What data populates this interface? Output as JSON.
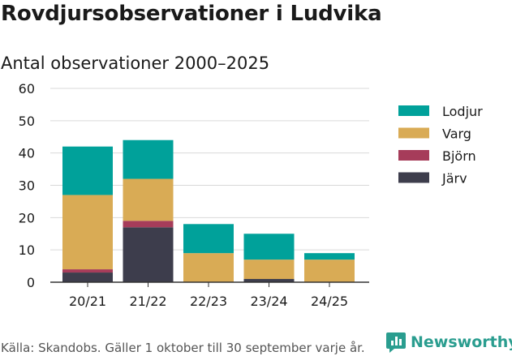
{
  "title": "Rovdjursobservationer i Ludvika",
  "subtitle": "Antal observationer 2000–2025",
  "footer": "Källa: Skandobs. Gäller 1 oktober till 30 september varje år.",
  "brand": {
    "name": "Newsworthy",
    "icon": "bar-chart-logo-icon"
  },
  "colors": {
    "Lodjur": "#00a19a",
    "Varg": "#d9ab55",
    "Björn": "#a63c5a",
    "Järv": "#3d3d4c",
    "grid": "#d9d9d9",
    "axis": "#333333",
    "brand": "#2a9d8f"
  },
  "chart_data": {
    "type": "bar",
    "stacked": true,
    "title": "Rovdjursobservationer i Ludvika",
    "subtitle": "Antal observationer 2000–2025",
    "xlabel": "",
    "ylabel": "",
    "categories": [
      "20/21",
      "21/22",
      "22/23",
      "23/24",
      "24/25"
    ],
    "yticks": [
      0,
      10,
      20,
      30,
      40,
      50,
      60
    ],
    "ylim": [
      0,
      60
    ],
    "grid": true,
    "legend_position": "right",
    "legend_order": [
      "Lodjur",
      "Varg",
      "Björn",
      "Järv"
    ],
    "series": [
      {
        "name": "Järv",
        "values": [
          3,
          17,
          0,
          1,
          0
        ]
      },
      {
        "name": "Björn",
        "values": [
          1,
          2,
          0,
          0,
          0
        ]
      },
      {
        "name": "Varg",
        "values": [
          23,
          13,
          9,
          6,
          7
        ]
      },
      {
        "name": "Lodjur",
        "values": [
          15,
          12,
          9,
          8,
          2
        ]
      }
    ]
  }
}
